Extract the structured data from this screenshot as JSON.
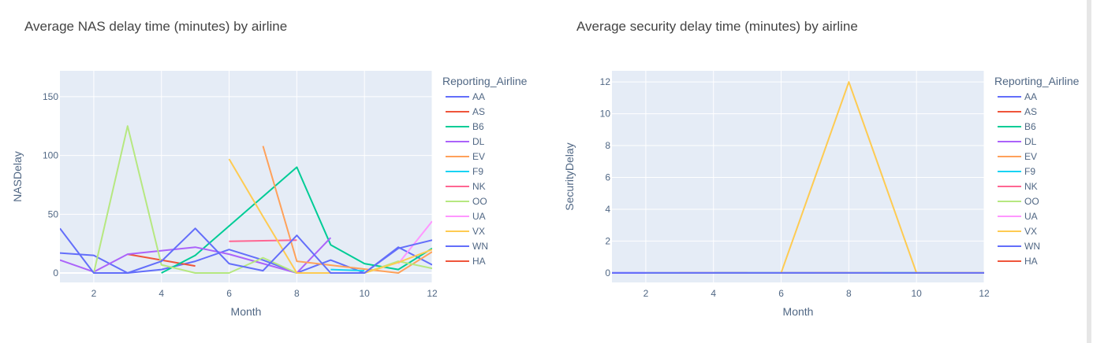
{
  "charts": [
    {
      "id": "left",
      "title": "Average NAS delay time (minutes) by airline",
      "xlabel": "Month",
      "ylabel": "NASDelay",
      "xlim": [
        1,
        12
      ],
      "ylim": [
        -8,
        172
      ],
      "xticks": [
        2,
        4,
        6,
        8,
        10,
        12
      ],
      "yticks": [
        0,
        50,
        100,
        150
      ],
      "legend_title": "Reporting_Airline"
    },
    {
      "id": "right",
      "title": "Average security delay time (minutes) by airline",
      "xlabel": "Month",
      "ylabel": "SecurityDelay",
      "xlim": [
        1,
        12
      ],
      "ylim": [
        -0.6,
        12.7
      ],
      "xticks": [
        2,
        4,
        6,
        8,
        10,
        12
      ],
      "yticks": [
        0,
        2,
        4,
        6,
        8,
        10,
        12
      ],
      "legend_title": "Reporting_Airline"
    }
  ],
  "chart_data": [
    {
      "type": "line",
      "title": "Average NAS delay time (minutes) by airline",
      "xlabel": "Month",
      "ylabel": "NASDelay",
      "xlim": [
        1,
        12
      ],
      "ylim": [
        -8,
        172
      ],
      "grid": true,
      "legend_placement": "right",
      "series": [
        {
          "name": "AA",
          "color": "#636efa",
          "x": [
            1,
            2,
            3,
            4,
            5,
            6,
            7,
            8,
            9,
            10,
            11,
            12
          ],
          "y": [
            17,
            15,
            0,
            3,
            10,
            20,
            11,
            0,
            11,
            0,
            22,
            7
          ]
        },
        {
          "name": "AS",
          "color": "#ef553b",
          "x": [
            3,
            4,
            5
          ],
          "y": [
            16,
            11,
            6
          ]
        },
        {
          "name": "B6",
          "color": "#00cc96",
          "x": [
            4,
            5,
            8,
            9,
            10,
            11,
            12
          ],
          "y": [
            0,
            15,
            90,
            24,
            8,
            3,
            21
          ]
        },
        {
          "name": "DL",
          "color": "#ab63fa",
          "x": [
            1,
            2,
            3,
            5,
            6,
            8,
            9
          ],
          "y": [
            11,
            1,
            16,
            22,
            16,
            0,
            30
          ]
        },
        {
          "name": "EV",
          "color": "#ffa15a",
          "x": [
            7,
            8,
            11,
            12
          ],
          "y": [
            108,
            10,
            0,
            18
          ]
        },
        {
          "name": "F9",
          "color": "#19d3f3",
          "x": [
            9,
            10
          ],
          "y": [
            3,
            2
          ]
        },
        {
          "name": "NK",
          "color": "#ff6692",
          "x": [
            6,
            8
          ],
          "y": [
            27,
            28
          ]
        },
        {
          "name": "OO",
          "color": "#b6e880",
          "x": [
            2,
            3,
            4,
            5,
            6,
            7,
            8,
            9,
            10,
            11,
            12
          ],
          "y": [
            0,
            125,
            7,
            0,
            0,
            13,
            0,
            0,
            0,
            10,
            4
          ]
        },
        {
          "name": "UA",
          "color": "#ff97ff",
          "x": [
            11,
            12
          ],
          "y": [
            8,
            44
          ]
        },
        {
          "name": "VX",
          "color": "#fecb52",
          "x": [
            6,
            7,
            8,
            9,
            10,
            11,
            12
          ],
          "y": [
            97,
            48,
            0,
            0,
            0,
            9,
            20
          ]
        },
        {
          "name": "WN",
          "color": "#636efa",
          "x": [
            1,
            2,
            3,
            4,
            5,
            6,
            7,
            8,
            9,
            10,
            11,
            12
          ],
          "y": [
            38,
            0,
            0,
            10,
            38,
            8,
            2,
            32,
            0,
            0,
            21,
            28
          ]
        },
        {
          "name": "HA",
          "color": "#ef553b",
          "x": [],
          "y": []
        }
      ]
    },
    {
      "type": "line",
      "title": "Average security delay time (minutes) by airline",
      "xlabel": "Month",
      "ylabel": "SecurityDelay",
      "xlim": [
        1,
        12
      ],
      "ylim": [
        -0.6,
        12.7
      ],
      "grid": true,
      "legend_placement": "right",
      "series": [
        {
          "name": "AA",
          "color": "#636efa",
          "x": [
            1,
            2,
            3,
            4,
            5,
            6,
            7,
            8,
            9,
            10,
            11,
            12
          ],
          "y": [
            0,
            0,
            0,
            0,
            0,
            0,
            0,
            0,
            0,
            0,
            0,
            0
          ]
        },
        {
          "name": "AS",
          "color": "#ef553b",
          "x": [
            3,
            4,
            5
          ],
          "y": [
            0,
            0,
            0
          ]
        },
        {
          "name": "B6",
          "color": "#00cc96",
          "x": [
            4,
            5,
            8,
            9,
            10,
            11,
            12
          ],
          "y": [
            0,
            0,
            0,
            0,
            0,
            0,
            0
          ]
        },
        {
          "name": "DL",
          "color": "#ab63fa",
          "x": [
            1,
            2,
            3,
            5,
            6,
            8,
            9
          ],
          "y": [
            0,
            0,
            0,
            0,
            0,
            0,
            0
          ]
        },
        {
          "name": "EV",
          "color": "#ffa15a",
          "x": [
            7,
            8,
            11,
            12
          ],
          "y": [
            0,
            0,
            0,
            0
          ]
        },
        {
          "name": "F9",
          "color": "#19d3f3",
          "x": [
            9,
            10
          ],
          "y": [
            0,
            0
          ]
        },
        {
          "name": "NK",
          "color": "#ff6692",
          "x": [
            6,
            8
          ],
          "y": [
            0,
            0
          ]
        },
        {
          "name": "OO",
          "color": "#b6e880",
          "x": [
            2,
            3,
            4,
            5,
            6,
            7,
            8,
            9,
            10,
            11,
            12
          ],
          "y": [
            0,
            0,
            0,
            0,
            0,
            0,
            0,
            0,
            0,
            0,
            0
          ]
        },
        {
          "name": "UA",
          "color": "#ff97ff",
          "x": [
            11,
            12
          ],
          "y": [
            0,
            0
          ]
        },
        {
          "name": "VX",
          "color": "#fecb52",
          "x": [
            6,
            7,
            8,
            9,
            10,
            11,
            12
          ],
          "y": [
            0,
            6,
            12,
            6,
            0,
            0,
            0
          ]
        },
        {
          "name": "WN",
          "color": "#636efa",
          "x": [
            1,
            2,
            3,
            4,
            5,
            6,
            7,
            8,
            9,
            10,
            11,
            12
          ],
          "y": [
            0,
            0,
            0,
            0,
            0,
            0,
            0,
            0,
            0,
            0,
            0,
            0
          ]
        },
        {
          "name": "HA",
          "color": "#ef553b",
          "x": [],
          "y": []
        }
      ]
    }
  ]
}
